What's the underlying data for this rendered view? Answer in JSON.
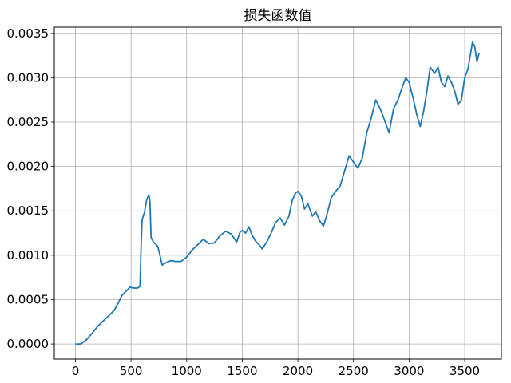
{
  "chart_data": {
    "type": "line",
    "title": "损失函数值",
    "xlabel": "",
    "ylabel": "",
    "xlim": [
      -190,
      3830
    ],
    "ylim": [
      -0.00017,
      0.00357
    ],
    "grid": true,
    "x_ticks": [
      0,
      500,
      1000,
      1500,
      2000,
      2500,
      3000,
      3500
    ],
    "x_tick_labels": [
      "0",
      "500",
      "1000",
      "1500",
      "2000",
      "2500",
      "3000",
      "3500"
    ],
    "y_ticks": [
      0.0,
      0.0005,
      0.001,
      0.0015,
      0.002,
      0.0025,
      0.003,
      0.0035
    ],
    "y_tick_labels": [
      "0.0000",
      "0.0005",
      "0.0010",
      "0.0015",
      "0.0020",
      "0.0025",
      "0.0030",
      "0.0035"
    ],
    "series": [
      {
        "color": "#1f77b4",
        "points": [
          [
            0,
            0.0
          ],
          [
            50,
            0.0
          ],
          [
            100,
            5e-05
          ],
          [
            150,
            0.00012
          ],
          [
            200,
            0.0002
          ],
          [
            250,
            0.00026
          ],
          [
            300,
            0.00032
          ],
          [
            350,
            0.00038
          ],
          [
            380,
            0.00045
          ],
          [
            420,
            0.00055
          ],
          [
            460,
            0.0006
          ],
          [
            490,
            0.00064
          ],
          [
            520,
            0.00063
          ],
          [
            560,
            0.00063
          ],
          [
            580,
            0.00065
          ],
          [
            590,
            0.0011
          ],
          [
            600,
            0.0014
          ],
          [
            620,
            0.00148
          ],
          [
            640,
            0.00162
          ],
          [
            660,
            0.00168
          ],
          [
            670,
            0.0016
          ],
          [
            680,
            0.0012
          ],
          [
            700,
            0.00115
          ],
          [
            740,
            0.0011
          ],
          [
            760,
            0.001
          ],
          [
            780,
            0.00089
          ],
          [
            820,
            0.00092
          ],
          [
            860,
            0.00094
          ],
          [
            900,
            0.00093
          ],
          [
            950,
            0.00093
          ],
          [
            1000,
            0.00098
          ],
          [
            1050,
            0.00106
          ],
          [
            1100,
            0.00112
          ],
          [
            1150,
            0.00118
          ],
          [
            1200,
            0.00113
          ],
          [
            1250,
            0.00114
          ],
          [
            1300,
            0.00122
          ],
          [
            1350,
            0.00127
          ],
          [
            1400,
            0.00124
          ],
          [
            1450,
            0.00115
          ],
          [
            1480,
            0.00126
          ],
          [
            1500,
            0.00128
          ],
          [
            1530,
            0.00125
          ],
          [
            1560,
            0.00132
          ],
          [
            1590,
            0.00122
          ],
          [
            1620,
            0.00116
          ],
          [
            1650,
            0.00112
          ],
          [
            1680,
            0.00107
          ],
          [
            1720,
            0.00115
          ],
          [
            1760,
            0.00125
          ],
          [
            1800,
            0.00137
          ],
          [
            1840,
            0.00142
          ],
          [
            1880,
            0.00134
          ],
          [
            1920,
            0.00144
          ],
          [
            1950,
            0.00162
          ],
          [
            1980,
            0.0017
          ],
          [
            2000,
            0.00172
          ],
          [
            2030,
            0.00167
          ],
          [
            2060,
            0.00152
          ],
          [
            2090,
            0.00158
          ],
          [
            2130,
            0.00144
          ],
          [
            2160,
            0.00149
          ],
          [
            2200,
            0.00138
          ],
          [
            2230,
            0.00133
          ],
          [
            2260,
            0.00145
          ],
          [
            2300,
            0.00165
          ],
          [
            2340,
            0.00172
          ],
          [
            2380,
            0.00178
          ],
          [
            2420,
            0.00195
          ],
          [
            2460,
            0.00212
          ],
          [
            2500,
            0.00205
          ],
          [
            2540,
            0.00198
          ],
          [
            2580,
            0.0021
          ],
          [
            2620,
            0.00238
          ],
          [
            2660,
            0.00255
          ],
          [
            2700,
            0.00275
          ],
          [
            2740,
            0.00265
          ],
          [
            2780,
            0.00252
          ],
          [
            2820,
            0.00238
          ],
          [
            2860,
            0.00265
          ],
          [
            2900,
            0.00275
          ],
          [
            2940,
            0.0029
          ],
          [
            2970,
            0.003
          ],
          [
            3000,
            0.00295
          ],
          [
            3040,
            0.00275
          ],
          [
            3070,
            0.00258
          ],
          [
            3100,
            0.00245
          ],
          [
            3130,
            0.00262
          ],
          [
            3160,
            0.00285
          ],
          [
            3190,
            0.00312
          ],
          [
            3230,
            0.00305
          ],
          [
            3260,
            0.00312
          ],
          [
            3290,
            0.00295
          ],
          [
            3320,
            0.0029
          ],
          [
            3350,
            0.00302
          ],
          [
            3380,
            0.00295
          ],
          [
            3410,
            0.00285
          ],
          [
            3440,
            0.0027
          ],
          [
            3470,
            0.00275
          ],
          [
            3500,
            0.003
          ],
          [
            3530,
            0.0031
          ],
          [
            3550,
            0.00325
          ],
          [
            3570,
            0.0034
          ],
          [
            3590,
            0.00335
          ],
          [
            3610,
            0.00318
          ],
          [
            3630,
            0.00328
          ]
        ]
      }
    ]
  }
}
